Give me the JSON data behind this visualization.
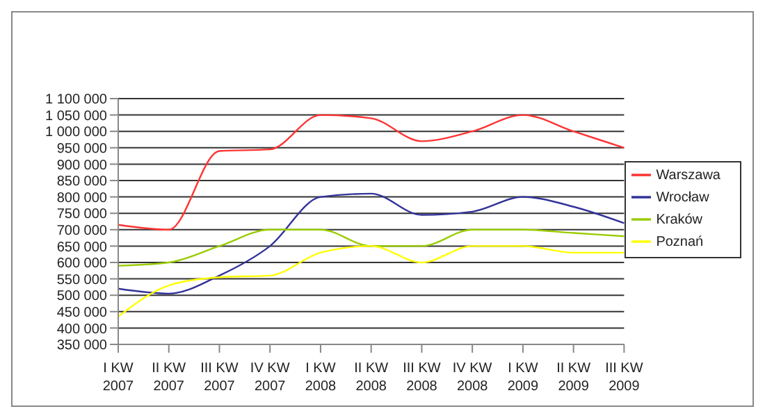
{
  "chart_data": {
    "type": "line",
    "categories": [
      "I KW 2007",
      "II KW 2007",
      "III KW 2007",
      "IV KW 2007",
      "I KW 2008",
      "II KW 2008",
      "III KW 2008",
      "IV KW 2008",
      "I KW 2009",
      "II KW 2009",
      "III KW 2009"
    ],
    "series": [
      {
        "name": "Warszawa",
        "color": "#ff3333",
        "values": [
          715000,
          700000,
          940000,
          945000,
          1050000,
          1040000,
          970000,
          1000000,
          1050000,
          1000000,
          950000
        ]
      },
      {
        "name": "Wrocław",
        "color": "#333399",
        "values": [
          520000,
          505000,
          560000,
          650000,
          800000,
          810000,
          745000,
          755000,
          800000,
          770000,
          720000
        ]
      },
      {
        "name": "Kraków",
        "color": "#99cc00",
        "values": [
          590000,
          600000,
          650000,
          700000,
          700000,
          650000,
          650000,
          700000,
          700000,
          690000,
          680000
        ]
      },
      {
        "name": "Poznań",
        "color": "#ffff00",
        "values": [
          435000,
          530000,
          555000,
          560000,
          630000,
          650000,
          600000,
          650000,
          650000,
          630000,
          630000
        ]
      }
    ],
    "ylim": [
      350000,
      1100000
    ],
    "yticks": [
      350000,
      400000,
      450000,
      500000,
      550000,
      600000,
      650000,
      700000,
      750000,
      800000,
      850000,
      900000,
      950000,
      1000000,
      1050000,
      1100000
    ],
    "grid": "y",
    "legend": "right",
    "marker": "none",
    "line_style": "solid"
  }
}
